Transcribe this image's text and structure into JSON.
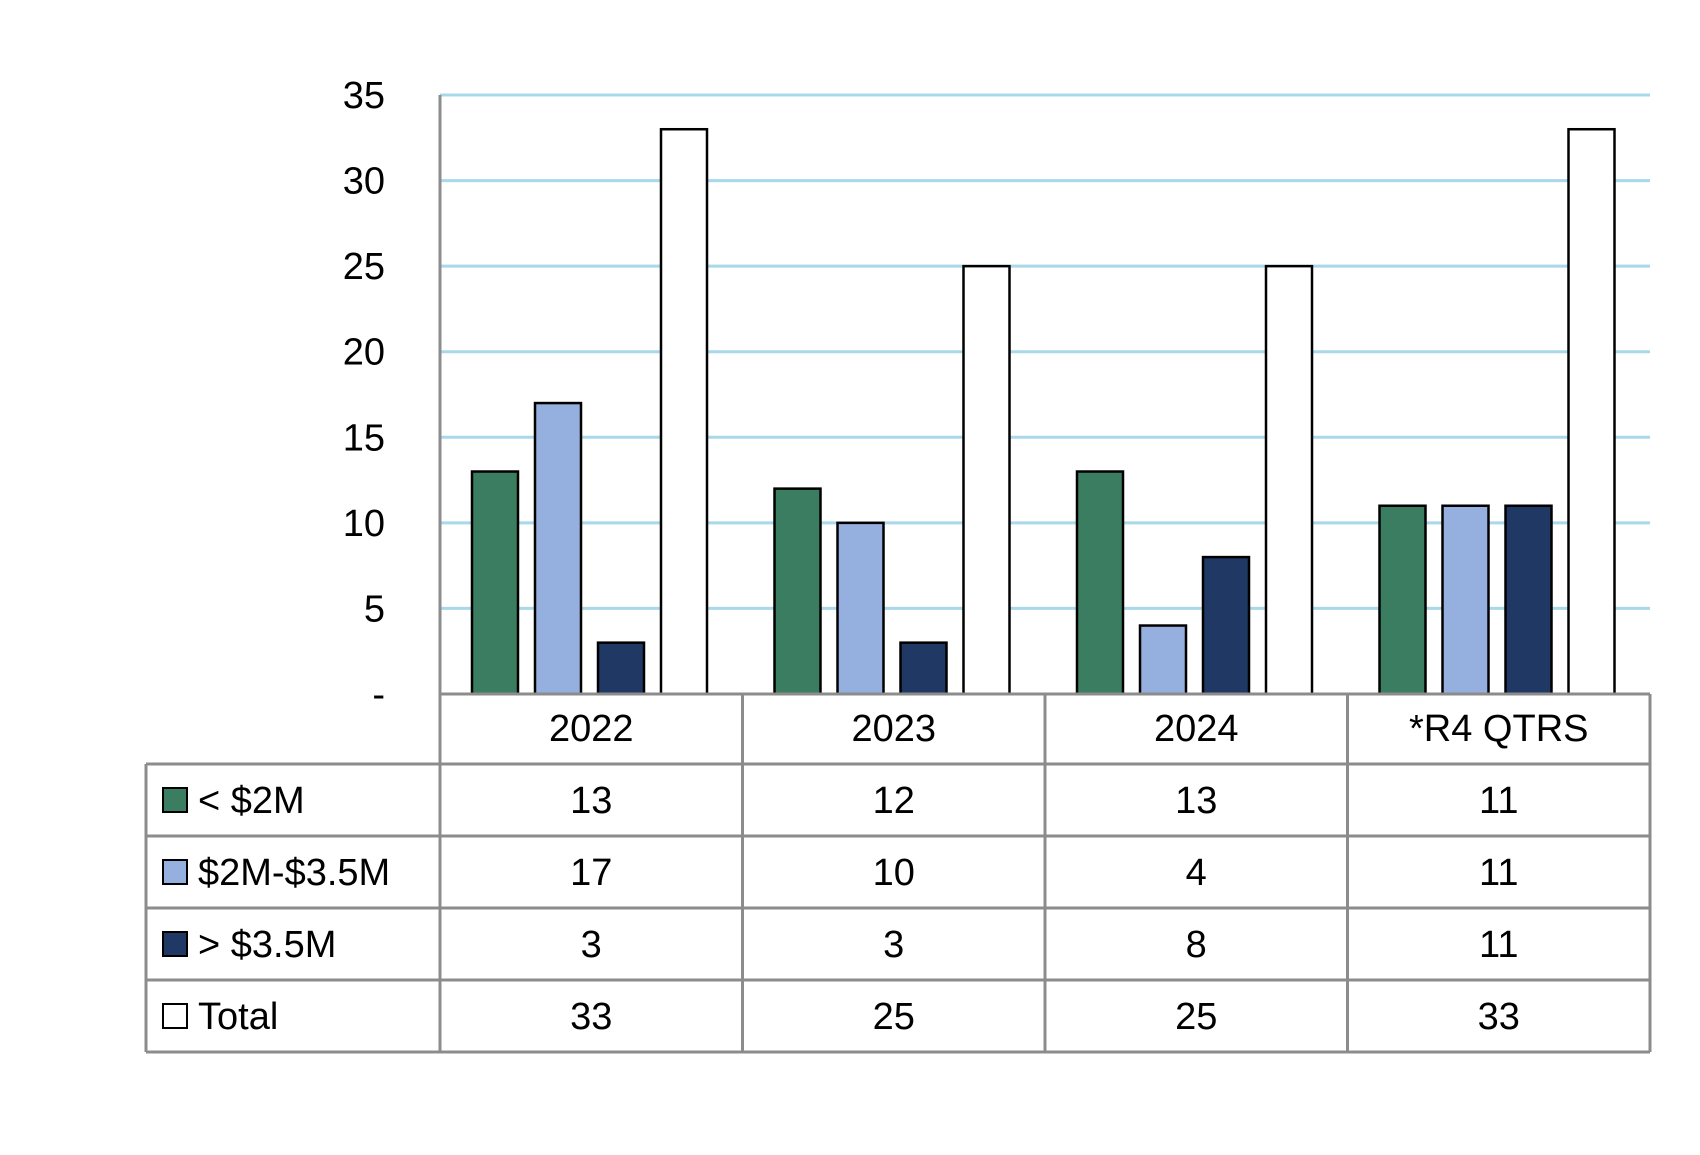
{
  "chart_data": {
    "type": "bar",
    "categories": [
      "2022",
      "2023",
      "2024",
      "*R4 QTRS"
    ],
    "series": [
      {
        "name": "< $2M",
        "values": [
          13,
          12,
          13,
          11
        ],
        "color": "#3a7d60"
      },
      {
        "name": "$2M-$3.5M",
        "values": [
          17,
          10,
          4,
          11
        ],
        "color": "#95b0de"
      },
      {
        "name": "> $3.5M",
        "values": [
          3,
          3,
          8,
          11
        ],
        "color": "#203864"
      },
      {
        "name": "Total",
        "values": [
          33,
          25,
          25,
          33
        ],
        "color": "#ffffff"
      }
    ],
    "ylim": [
      0,
      35
    ],
    "yticks": [
      0,
      5,
      10,
      15,
      20,
      25,
      30,
      35
    ],
    "ytick_labels": [
      "-",
      "5",
      "10",
      "15",
      "20",
      "25",
      "30",
      "35"
    ],
    "grid": true,
    "gridline_color": "#a9d8ea",
    "table_border_color": "#8c8c8c",
    "legend": "data-table"
  }
}
